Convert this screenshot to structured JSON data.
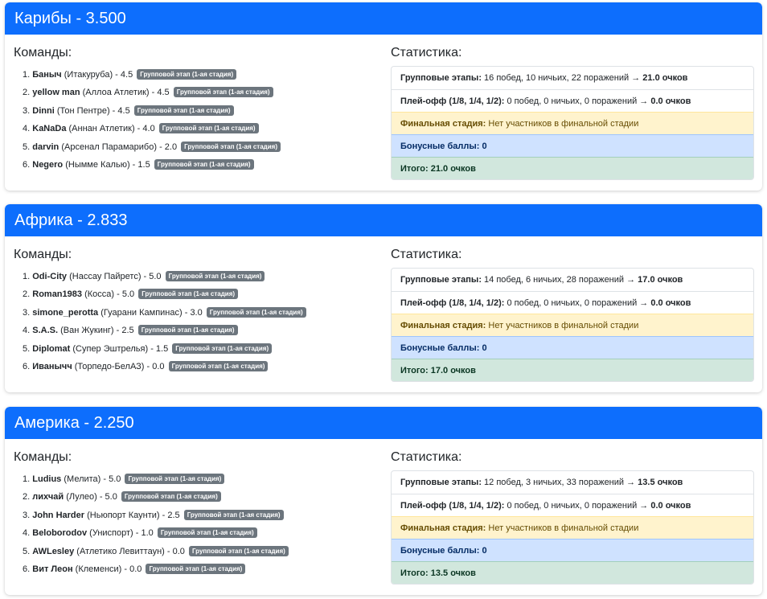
{
  "regions": [
    {
      "title": "Карибы - 3.500",
      "teams_label": "Команды:",
      "stats_label": "Статистика:",
      "teams": [
        {
          "num": "1.",
          "name": "Баныч",
          "club": "(Итакуруба) - 4.5",
          "badge": "Групповой этап (1-ая стадия)"
        },
        {
          "num": "2.",
          "name": "yellow man",
          "club": "(Аллоа Атлетик) - 4.5",
          "badge": "Групповой этап (1-ая стадия)"
        },
        {
          "num": "3.",
          "name": "Dinni",
          "club": "(Тон Пентре) - 4.5",
          "badge": "Групповой этап (1-ая стадия)"
        },
        {
          "num": "4.",
          "name": "KaNaDa",
          "club": "(Аннан Атлетик) - 4.0",
          "badge": "Групповой этап (1-ая стадия)"
        },
        {
          "num": "5.",
          "name": "darvin",
          "club": "(Арсенал Парамарибо) - 2.0",
          "badge": "Групповой этап (1-ая стадия)"
        },
        {
          "num": "6.",
          "name": "Negero",
          "club": "(Нымме Калью) - 1.5",
          "badge": "Групповой этап (1-ая стадия)"
        }
      ],
      "stats": {
        "group_label": "Групповые этапы:",
        "group_text": "16 побед, 10 ничьих, 22 поражений →",
        "group_points": "21.0 очков",
        "playoff_label": "Плей-офф (1/8, 1/4, 1/2):",
        "playoff_text": "0 побед, 0 ничьих, 0 поражений →",
        "playoff_points": "0.0 очков",
        "final_label": "Финальная стадия:",
        "final_text": "Нет участников в финальной стадии",
        "bonus": "Бонусные баллы: 0",
        "total": "Итого: 21.0 очков"
      }
    },
    {
      "title": "Африка - 2.833",
      "teams_label": "Команды:",
      "stats_label": "Статистика:",
      "teams": [
        {
          "num": "1.",
          "name": "Odi-City",
          "club": "(Нассау Пайретс) - 5.0",
          "badge": "Групповой этап (1-ая стадия)"
        },
        {
          "num": "2.",
          "name": "Roman1983",
          "club": "(Косса) - 5.0",
          "badge": "Групповой этап (1-ая стадия)"
        },
        {
          "num": "3.",
          "name": "simone_perotta",
          "club": "(Гуарани Кампинас) - 3.0",
          "badge": "Групповой этап (1-ая стадия)"
        },
        {
          "num": "4.",
          "name": "S.A.S.",
          "club": "(Ван Жукинг) - 2.5",
          "badge": "Групповой этап (1-ая стадия)"
        },
        {
          "num": "5.",
          "name": "Diplomat",
          "club": "(Супер Эштрелья) - 1.5",
          "badge": "Групповой этап (1-ая стадия)"
        },
        {
          "num": "6.",
          "name": "Иванычч",
          "club": "(Торпедо-БелАЗ) - 0.0",
          "badge": "Групповой этап (1-ая стадия)"
        }
      ],
      "stats": {
        "group_label": "Групповые этапы:",
        "group_text": "14 побед, 6 ничьих, 28 поражений →",
        "group_points": "17.0 очков",
        "playoff_label": "Плей-офф (1/8, 1/4, 1/2):",
        "playoff_text": "0 побед, 0 ничьих, 0 поражений →",
        "playoff_points": "0.0 очков",
        "final_label": "Финальная стадия:",
        "final_text": "Нет участников в финальной стадии",
        "bonus": "Бонусные баллы: 0",
        "total": "Итого: 17.0 очков"
      }
    },
    {
      "title": "Америка - 2.250",
      "teams_label": "Команды:",
      "stats_label": "Статистика:",
      "teams": [
        {
          "num": "1.",
          "name": "Ludius",
          "club": "(Мелита) - 5.0",
          "badge": "Групповой этап (1-ая стадия)"
        },
        {
          "num": "2.",
          "name": "лихчай",
          "club": "(Лулео) - 5.0",
          "badge": "Групповой этап (1-ая стадия)"
        },
        {
          "num": "3.",
          "name": "John Harder",
          "club": "(Ньюпорт Каунти) - 2.5",
          "badge": "Групповой этап (1-ая стадия)"
        },
        {
          "num": "4.",
          "name": "Beloborodov",
          "club": "(Униспорт) - 1.0",
          "badge": "Групповой этап (1-ая стадия)"
        },
        {
          "num": "5.",
          "name": "AWLesley",
          "club": "(Атлетико Левиттаун) - 0.0",
          "badge": "Групповой этап (1-ая стадия)"
        },
        {
          "num": "6.",
          "name": "Вит Леон",
          "club": "(Клеменси) - 0.0",
          "badge": "Групповой этап (1-ая стадия)"
        }
      ],
      "stats": {
        "group_label": "Групповые этапы:",
        "group_text": "12 побед, 3 ничьих, 33 поражений →",
        "group_points": "13.5 очков",
        "playoff_label": "Плей-офф (1/8, 1/4, 1/2):",
        "playoff_text": "0 побед, 0 ничьих, 0 поражений →",
        "playoff_points": "0.0 очков",
        "final_label": "Финальная стадия:",
        "final_text": "Нет участников в финальной стадии",
        "bonus": "Бонусные баллы: 0",
        "total": "Итого: 13.5 очков"
      }
    }
  ]
}
